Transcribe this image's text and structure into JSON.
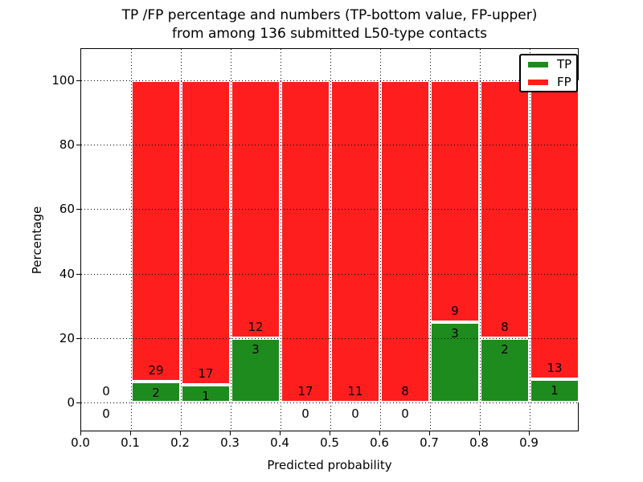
{
  "chart_data": {
    "type": "bar",
    "variant": "stacked-percentage-histogram",
    "title_lines": [
      "TP /FP percentage and numbers (TP-bottom value, FP-upper)",
      "from among 136 submitted L50-type contacts"
    ],
    "xlabel": "Predicted probability",
    "ylabel": "Percentage",
    "total_submitted": 136,
    "xlim": [
      0.0,
      1.0
    ],
    "ylim_display": [
      -9.2,
      109.7
    ],
    "xtick_values": [
      0.0,
      0.1,
      0.2,
      0.3,
      0.4,
      0.5,
      0.6,
      0.7,
      0.8,
      0.9
    ],
    "xtick_labels": [
      "0.0",
      "0.1",
      "0.2",
      "0.3",
      "0.4",
      "0.5",
      "0.6",
      "0.7",
      "0.8",
      "0.9"
    ],
    "ytick_values": [
      0,
      20,
      40,
      60,
      80,
      100
    ],
    "grid": {
      "style": "dotted",
      "color": "#000000",
      "above_bars": true
    },
    "colors": {
      "tp": "#1e8b1e",
      "fp": "#ff1e1e",
      "bar_edge": "#ffffff"
    },
    "legend": {
      "position": "upper-right",
      "entries": [
        {
          "label": "TP",
          "color": "#1e8b1e"
        },
        {
          "label": "FP",
          "color": "#ff1e1e"
        }
      ]
    },
    "bins": [
      {
        "x0": 0.0,
        "x1": 0.1,
        "tp": 0,
        "fp": 0,
        "tp_pct": 0.0,
        "draw_bar": false
      },
      {
        "x0": 0.1,
        "x1": 0.2,
        "tp": 2,
        "fp": 29,
        "tp_pct": 6.45,
        "draw_bar": true
      },
      {
        "x0": 0.2,
        "x1": 0.3,
        "tp": 1,
        "fp": 17,
        "tp_pct": 5.56,
        "draw_bar": true
      },
      {
        "x0": 0.3,
        "x1": 0.4,
        "tp": 3,
        "fp": 12,
        "tp_pct": 20.0,
        "draw_bar": true
      },
      {
        "x0": 0.4,
        "x1": 0.5,
        "tp": 0,
        "fp": 17,
        "tp_pct": 0.0,
        "draw_bar": true
      },
      {
        "x0": 0.5,
        "x1": 0.6,
        "tp": 0,
        "fp": 11,
        "tp_pct": 0.0,
        "draw_bar": true
      },
      {
        "x0": 0.6,
        "x1": 0.7,
        "tp": 0,
        "fp": 8,
        "tp_pct": 0.0,
        "draw_bar": true
      },
      {
        "x0": 0.7,
        "x1": 0.8,
        "tp": 3,
        "fp": 9,
        "tp_pct": 25.0,
        "draw_bar": true
      },
      {
        "x0": 0.8,
        "x1": 0.9,
        "tp": 2,
        "fp": 8,
        "tp_pct": 20.0,
        "draw_bar": true
      },
      {
        "x0": 0.9,
        "x1": 1.0,
        "tp": 1,
        "fp": 13,
        "tp_pct": 7.14,
        "draw_bar": true
      }
    ]
  }
}
